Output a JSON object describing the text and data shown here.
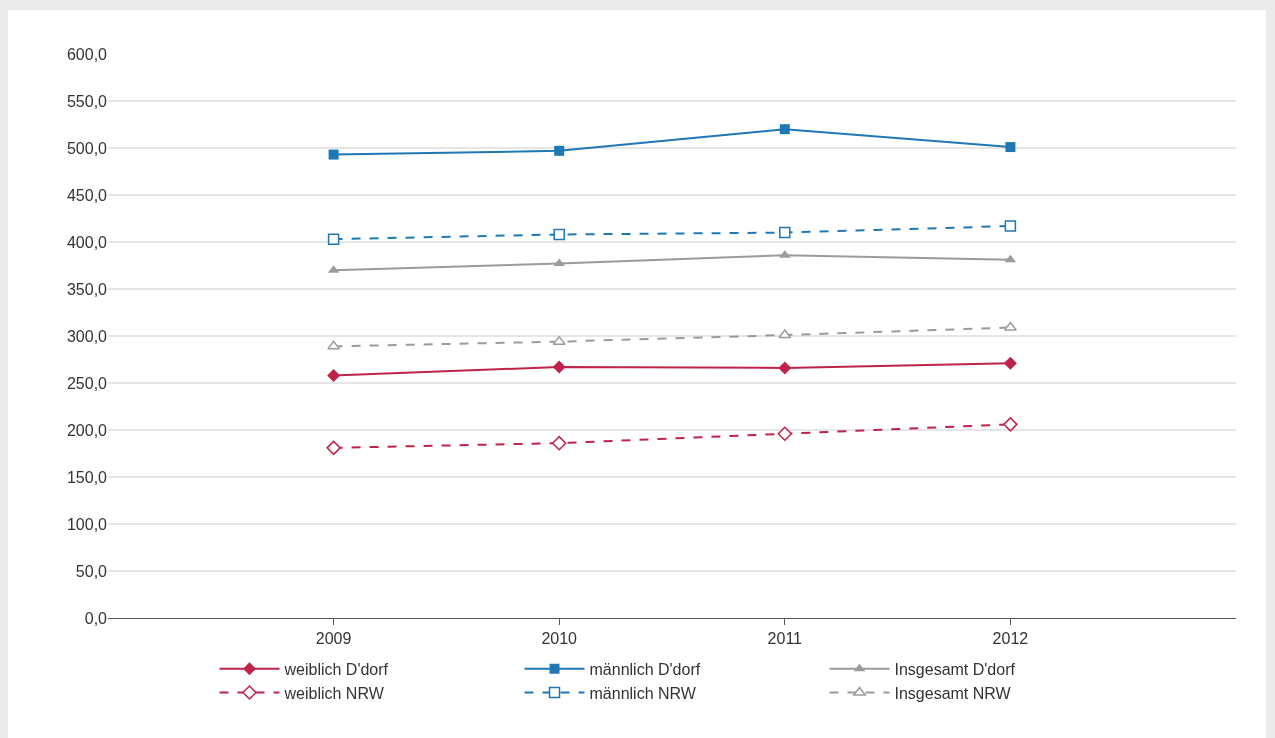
{
  "chart_data": {
    "type": "line",
    "x": [
      2009,
      2010,
      2011,
      2012
    ],
    "xlim": [
      2008,
      2013
    ],
    "xticks": [
      2009,
      2010,
      2011,
      2012
    ],
    "ylim": [
      0,
      600
    ],
    "yticks": [
      {
        "value": 0,
        "label": "0,0"
      },
      {
        "value": 50,
        "label": "50,0"
      },
      {
        "value": 100,
        "label": "100,0"
      },
      {
        "value": 150,
        "label": "150,0"
      },
      {
        "value": 200,
        "label": "200,0"
      },
      {
        "value": 250,
        "label": "250,0"
      },
      {
        "value": 300,
        "label": "300,0"
      },
      {
        "value": 350,
        "label": "350,0"
      },
      {
        "value": 400,
        "label": "400,0"
      },
      {
        "value": 450,
        "label": "450,0"
      },
      {
        "value": 500,
        "label": "500,0"
      },
      {
        "value": 550,
        "label": "550,0"
      },
      {
        "value": 600,
        "label": "600,0"
      }
    ],
    "grid": "y",
    "legend": "bottom",
    "series": [
      {
        "name": "weiblich D'dorf",
        "color": "#c0234a",
        "marker": "diamond",
        "line_style": "solid",
        "values": [
          258,
          267,
          266,
          271
        ]
      },
      {
        "name": "männlich D'dorf",
        "color": "#1f78b4",
        "marker": "square",
        "line_style": "solid",
        "values": [
          493,
          497,
          520,
          501
        ]
      },
      {
        "name": "Insgesamt D'dorf",
        "color": "#9b9b9b",
        "marker": "triangle",
        "line_style": "solid",
        "values": [
          370,
          377,
          386,
          381
        ]
      },
      {
        "name": "weiblich NRW",
        "color": "#c0234a",
        "marker": "diamond-open",
        "line_style": "dashed",
        "values": [
          181,
          186,
          196,
          206
        ]
      },
      {
        "name": "männlich NRW",
        "color": "#1f78b4",
        "marker": "square-open",
        "line_style": "dashed",
        "values": [
          403,
          408,
          410,
          417
        ]
      },
      {
        "name": "Insgesamt NRW",
        "color": "#9b9b9b",
        "marker": "triangle-open",
        "line_style": "dashed",
        "values": [
          289,
          294,
          301,
          309
        ]
      }
    ]
  }
}
